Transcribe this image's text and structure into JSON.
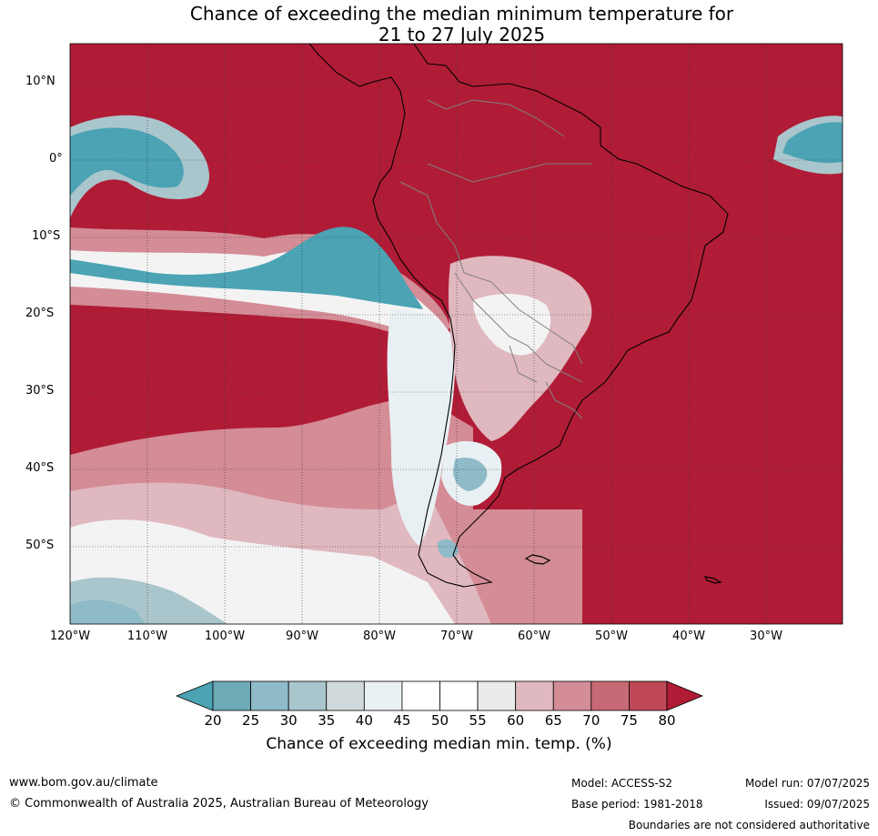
{
  "title_line1": "Chance of exceeding the median minimum temperature for",
  "title_line2": "21 to 27 July 2025",
  "map": {
    "lat_labels": [
      "10°N",
      "0°",
      "10°S",
      "20°S",
      "30°S",
      "40°S",
      "50°S"
    ],
    "lon_labels": [
      "120°W",
      "110°W",
      "100°W",
      "90°W",
      "80°W",
      "70°W",
      "60°W",
      "50°W",
      "40°W",
      "30°W"
    ],
    "extent": {
      "lon_min": -120,
      "lon_max": -20,
      "lat_min": -60,
      "lat_max": 15
    }
  },
  "colorbar": {
    "ticks": [
      "20",
      "25",
      "30",
      "35",
      "40",
      "45",
      "50",
      "55",
      "60",
      "65",
      "70",
      "75",
      "80"
    ],
    "colors": [
      "#4ba3b4",
      "#6ea9b6",
      "#8fbac7",
      "#aac6cd",
      "#d0d9db",
      "#e8f0f3",
      "#ffffff",
      "#ffffff",
      "#ebebec",
      "#e0b8bf",
      "#d48c96",
      "#c86a76",
      "#bf4856",
      "#b01c36"
    ],
    "title": "Chance of exceeding median min. temp. (%)"
  },
  "footer": {
    "website": "www.bom.gov.au/climate",
    "copyright": "© Commonwealth of Australia 2025, Australian Bureau of Meteorology",
    "model": "Model: ACCESS-S2",
    "base_period": "Base period: 1981-2018",
    "model_run": "Model run: 07/07/2025",
    "issued": "Issued: 09/07/2025",
    "disclaimer": "Boundaries are not considered authoritative"
  },
  "colors": {
    "high": "#b01c36",
    "low": "#4ba3b4"
  }
}
